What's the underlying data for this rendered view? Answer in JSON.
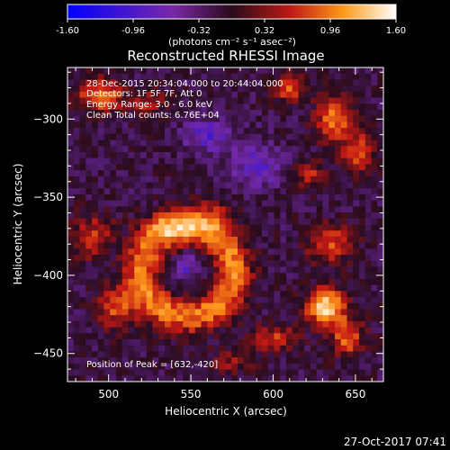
{
  "chart_data": {
    "type": "heatmap",
    "title": "Reconstructed RHESSI Image",
    "xlabel": "Heliocentric X (arcsec)",
    "ylabel": "Heliocentric Y (arcsec)",
    "xlim": [
      475,
      667
    ],
    "ylim": [
      -468,
      -267
    ],
    "x_ticks": [
      500,
      550,
      600,
      650
    ],
    "y_ticks": [
      -300,
      -350,
      -400,
      -450
    ],
    "colorbar": {
      "min": -1.6,
      "max": 1.6,
      "ticks": [
        "-1.60",
        "-0.96",
        "-0.32",
        "0.32",
        "0.96",
        "1.60"
      ],
      "unit_label": "(photons cm⁻² s⁻¹ asec⁻²)"
    },
    "annotations": {
      "time_range": "28-Dec-2015 20:34:04.000 to 20:44:04.000",
      "detectors": "Detectors: 1F 5F 7F, Att 0",
      "energy": "Energy Range: 3.0 - 6.0 keV",
      "clean": "Clean    Total counts: 6.76E+04",
      "peak": "Position of Peak = [632,-420]"
    },
    "peak_position": [
      632,
      -420
    ],
    "features": [
      {
        "type": "ring",
        "cx": 548,
        "cy": -398,
        "r": 28,
        "w": 11,
        "amp": 1.05
      },
      {
        "type": "blob",
        "cx": 537,
        "cy": -368,
        "sx": 17,
        "sy": 9,
        "amp": 0.55
      },
      {
        "type": "blob",
        "cx": 562,
        "cy": -362,
        "sx": 15,
        "sy": 10,
        "amp": 0.55
      },
      {
        "type": "blob",
        "cx": 632,
        "cy": -420,
        "sx": 12,
        "sy": 11,
        "amp": 1.55
      },
      {
        "type": "blob",
        "cx": 645,
        "cy": -440,
        "sx": 10,
        "sy": 12,
        "amp": 0.9
      },
      {
        "type": "blob",
        "cx": 600,
        "cy": -440,
        "sx": 14,
        "sy": 8,
        "amp": 0.7
      },
      {
        "type": "blob",
        "cx": 505,
        "cy": -420,
        "sx": 12,
        "sy": 14,
        "amp": 0.85
      },
      {
        "type": "blob",
        "cx": 490,
        "cy": -375,
        "sx": 12,
        "sy": 14,
        "amp": 0.7
      },
      {
        "type": "blob",
        "cx": 495,
        "cy": -285,
        "sx": 14,
        "sy": 10,
        "amp": 1.1
      },
      {
        "type": "blob",
        "cx": 525,
        "cy": -290,
        "sx": 10,
        "sy": 8,
        "amp": 0.6
      },
      {
        "type": "blob",
        "cx": 610,
        "cy": -280,
        "sx": 10,
        "sy": 8,
        "amp": 0.9
      },
      {
        "type": "blob",
        "cx": 638,
        "cy": -300,
        "sx": 12,
        "sy": 14,
        "amp": 1.0
      },
      {
        "type": "blob",
        "cx": 652,
        "cy": -322,
        "sx": 10,
        "sy": 12,
        "amp": 0.9
      },
      {
        "type": "blob",
        "cx": 622,
        "cy": -335,
        "sx": 8,
        "sy": 8,
        "amp": 0.8
      },
      {
        "type": "blob",
        "cx": 635,
        "cy": -380,
        "sx": 14,
        "sy": 12,
        "amp": 0.8
      },
      {
        "type": "blob",
        "cx": 575,
        "cy": -455,
        "sx": 12,
        "sy": 8,
        "amp": 0.5
      },
      {
        "type": "blob",
        "cx": 560,
        "cy": -310,
        "sx": 14,
        "sy": 10,
        "amp": -0.7
      },
      {
        "type": "blob",
        "cx": 590,
        "cy": -330,
        "sx": 16,
        "sy": 14,
        "amp": -0.6
      },
      {
        "type": "blob",
        "cx": 548,
        "cy": -395,
        "sx": 9,
        "sy": 9,
        "amp": -0.55
      }
    ]
  },
  "footer": {
    "date": "27-Oct-2017 07:41"
  }
}
